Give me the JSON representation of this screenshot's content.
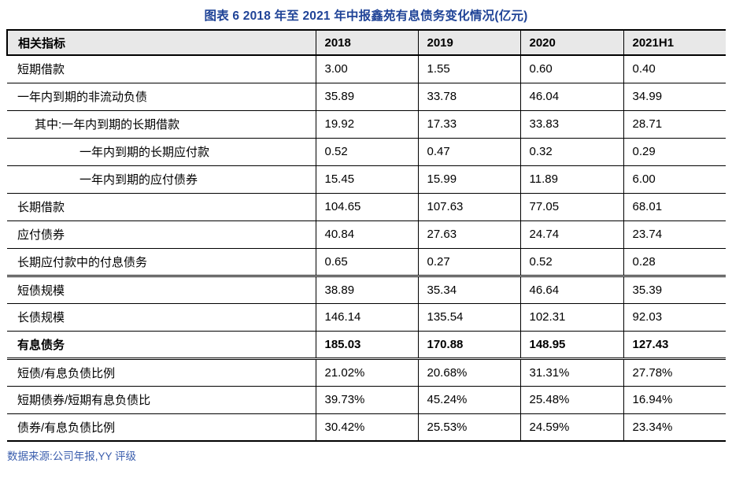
{
  "title": "图表 6 2018 年至 2021 年中报鑫苑有息债务变化情况(亿元)",
  "source": "数据来源:公司年报,YY 评级",
  "colors": {
    "title_text": "#1F4397",
    "source_text": "#3C5FAE",
    "header_bg": "#E8E8E8",
    "border": "#000000",
    "page_bg": "#FFFFFF"
  },
  "chart_data": {
    "type": "table",
    "title": "图表 6 2018 年至 2021 年中报鑫苑有息债务变化情况(亿元)",
    "unit": "亿元",
    "columns": [
      "相关指标",
      "2018",
      "2019",
      "2020",
      "2021H1"
    ],
    "rows": [
      {
        "label": "短期借款",
        "indent": 0,
        "bold": false,
        "sep": "single",
        "values": [
          "3.00",
          "1.55",
          "0.60",
          "0.40"
        ]
      },
      {
        "label": "一年内到期的非流动负债",
        "indent": 0,
        "bold": false,
        "sep": "single",
        "values": [
          "35.89",
          "33.78",
          "46.04",
          "34.99"
        ]
      },
      {
        "label": "其中:一年内到期的长期借款",
        "indent": 1,
        "bold": false,
        "sep": "single",
        "values": [
          "19.92",
          "17.33",
          "33.83",
          "28.71"
        ]
      },
      {
        "label": "一年内到期的长期应付款",
        "indent": 2,
        "bold": false,
        "sep": "single",
        "values": [
          "0.52",
          "0.47",
          "0.32",
          "0.29"
        ]
      },
      {
        "label": "一年内到期的应付债券",
        "indent": 2,
        "bold": false,
        "sep": "single",
        "values": [
          "15.45",
          "15.99",
          "11.89",
          "6.00"
        ]
      },
      {
        "label": "长期借款",
        "indent": 0,
        "bold": false,
        "sep": "single",
        "values": [
          "104.65",
          "107.63",
          "77.05",
          "68.01"
        ]
      },
      {
        "label": "应付债券",
        "indent": 0,
        "bold": false,
        "sep": "single",
        "values": [
          "40.84",
          "27.63",
          "24.74",
          "23.74"
        ]
      },
      {
        "label": "长期应付款中的付息债务",
        "indent": 0,
        "bold": false,
        "sep": "double",
        "values": [
          "0.65",
          "0.27",
          "0.52",
          "0.28"
        ]
      },
      {
        "label": "短债规模",
        "indent": 0,
        "bold": false,
        "sep": "single",
        "values": [
          "38.89",
          "35.34",
          "46.64",
          "35.39"
        ]
      },
      {
        "label": "长债规模",
        "indent": 0,
        "bold": false,
        "sep": "single",
        "values": [
          "146.14",
          "135.54",
          "102.31",
          "92.03"
        ]
      },
      {
        "label": "有息债务",
        "indent": 0,
        "bold": true,
        "sep": "double",
        "values": [
          "185.03",
          "170.88",
          "148.95",
          "127.43"
        ]
      },
      {
        "label": "短债/有息负债比例",
        "indent": 0,
        "bold": false,
        "sep": "single",
        "values": [
          "21.02%",
          "20.68%",
          "31.31%",
          "27.78%"
        ]
      },
      {
        "label": "短期债券/短期有息负债比",
        "indent": 0,
        "bold": false,
        "sep": "single",
        "values": [
          "39.73%",
          "45.24%",
          "25.48%",
          "16.94%"
        ]
      },
      {
        "label": "债券/有息负债比例",
        "indent": 0,
        "bold": false,
        "sep": "single",
        "values": [
          "30.42%",
          "25.53%",
          "24.59%",
          "23.34%"
        ]
      }
    ]
  }
}
